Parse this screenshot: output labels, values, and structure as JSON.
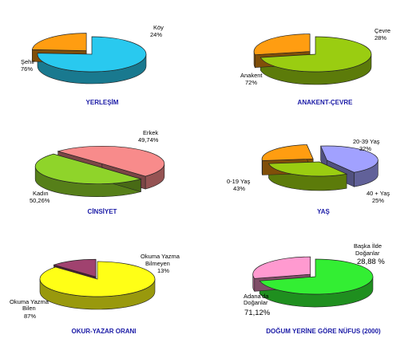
{
  "colors": {
    "cyan": "#29c9ef",
    "orange": "#ff9d11",
    "olive": "#9acd11",
    "salmon": "#f88b8b",
    "lightgreen": "#8fd42a",
    "lavender": "#a1a1ff",
    "yellow": "#ffff16",
    "plum": "#a0426f",
    "green": "#33ee33",
    "pink": "#ff9ad0",
    "title": "#1a1aa6"
  },
  "chart_data": [
    {
      "type": "pie",
      "title": "YERLEŞİM",
      "slices": [
        {
          "label": "Şehir",
          "pct_text": "76%",
          "value": 76,
          "color": "#29c9ef"
        },
        {
          "label": "Köy",
          "pct_text": "24%",
          "value": 24,
          "color": "#ff9d11",
          "exploded": true
        }
      ]
    },
    {
      "type": "pie",
      "title": "ANAKENT-ÇEVRE",
      "slices": [
        {
          "label": "Anakent",
          "pct_text": "72%",
          "value": 72,
          "color": "#9acd11"
        },
        {
          "label": "Çevre",
          "pct_text": "28%",
          "value": 28,
          "color": "#ff9d11",
          "exploded": true
        }
      ]
    },
    {
      "type": "pie",
      "title": "CİNSİYET",
      "slices": [
        {
          "label": "Kadın",
          "pct_text": "50,26%",
          "value": 50.26,
          "color": "#f88b8b",
          "exploded": true
        },
        {
          "label": "Erkek",
          "pct_text": "49,74%",
          "value": 49.74,
          "color": "#8fd42a",
          "exploded": true
        }
      ]
    },
    {
      "type": "pie",
      "title": "YAŞ",
      "slices": [
        {
          "label": "0-19 Yaş",
          "pct_text": "43%",
          "value": 43,
          "color": "#a1a1ff",
          "exploded": true
        },
        {
          "label": "20-39 Yaş",
          "pct_text": "32%",
          "value": 32,
          "color": "#9acd11"
        },
        {
          "label": "40 + Yaş",
          "pct_text": "25%",
          "value": 25,
          "color": "#ff9d11",
          "exploded": true
        }
      ]
    },
    {
      "type": "pie",
      "title": "OKUR-YAZAR ORANI",
      "slices": [
        {
          "label": "Okuma Yazma Bilen",
          "pct_text": "87%",
          "value": 87,
          "color": "#ffff16"
        },
        {
          "label": "Okuma Yazma Bilmeyen",
          "pct_text": "13%",
          "value": 13,
          "color": "#a0426f",
          "exploded": true
        }
      ]
    },
    {
      "type": "pie",
      "title": "DOĞUM YERİNE GÖRE NÜFUS (2000)",
      "slices": [
        {
          "label": "Adana'da Doğanlar",
          "pct_text": "71,12%",
          "value": 71.12,
          "color": "#33ee33"
        },
        {
          "label": "Başka İlde Doğanlar",
          "pct_text": "28,88 %",
          "value": 28.88,
          "color": "#ff9ad0",
          "exploded": true
        }
      ]
    }
  ],
  "labels": {
    "p0": {
      "a": [
        "Şehir",
        "76%"
      ],
      "b": [
        "Köy",
        "24%"
      ]
    },
    "p1": {
      "a": [
        "Anakent",
        "72%"
      ],
      "b": [
        "Çevre",
        "28%"
      ]
    },
    "p2": {
      "a": [
        "Kadın",
        "50,26%"
      ],
      "b": [
        "Erkek",
        "49,74%"
      ]
    },
    "p3": {
      "a": [
        "0-19 Yaş",
        "43%"
      ],
      "b": [
        "20-39 Yaş",
        "32%"
      ],
      "c": [
        "40 + Yaş",
        "25%"
      ]
    },
    "p4": {
      "a": [
        "Okuma Yazma",
        "Bilen",
        "87%"
      ],
      "b": [
        "Okuma Yazma",
        "Bilmeyen",
        "13%"
      ]
    },
    "p5": {
      "a": [
        "Adana'da",
        "Doğanlar",
        "71,12%"
      ],
      "b": [
        "Başka İlde",
        "Doğanlar",
        "28,88 %"
      ]
    }
  }
}
